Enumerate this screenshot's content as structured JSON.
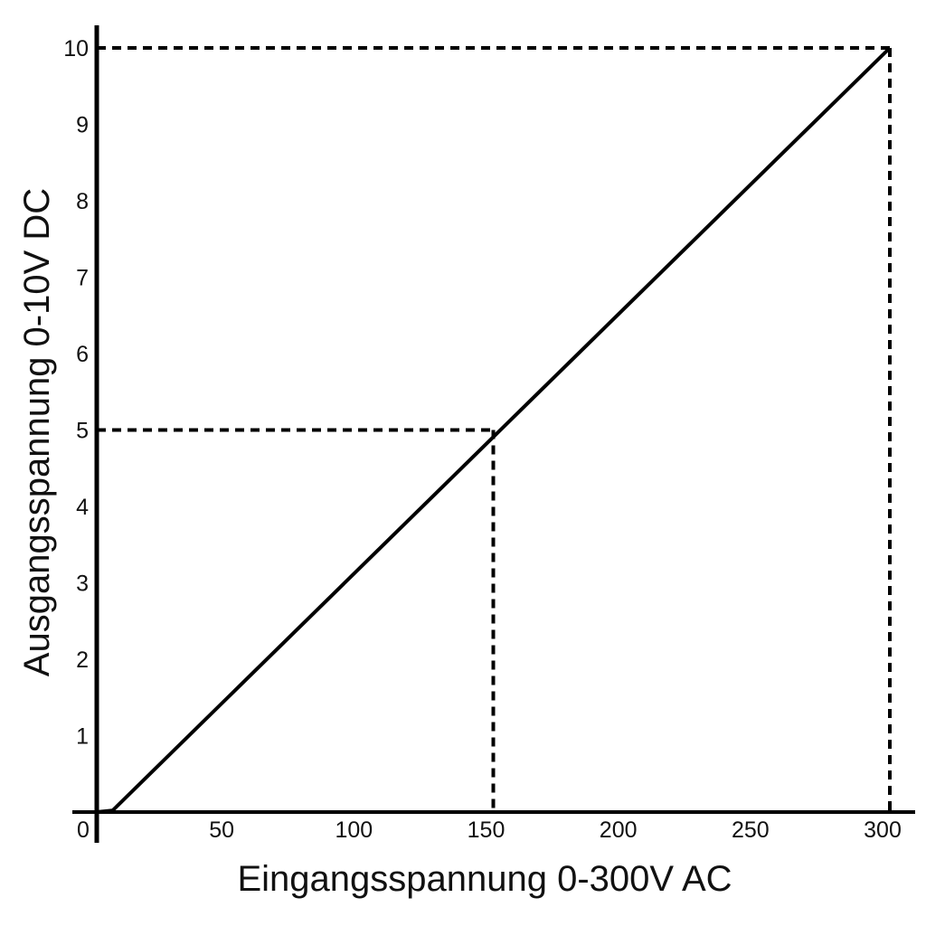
{
  "chart_data": {
    "type": "line",
    "xlabel": "Eingangsspannung 0-300V AC",
    "ylabel": "Ausgangsspannung 0-10V DC",
    "origin_label": "0",
    "xlim": [
      0,
      300
    ],
    "ylim": [
      0,
      10
    ],
    "x_ticks": [
      50,
      100,
      150,
      200,
      250,
      300
    ],
    "x_tick_labels": [
      "50",
      "100",
      "150",
      "200",
      "250",
      "300"
    ],
    "y_ticks": [
      1,
      2,
      3,
      4,
      5,
      6,
      7,
      8,
      9,
      10
    ],
    "y_tick_labels": [
      "1",
      "2",
      "3",
      "4",
      "5",
      "6",
      "7",
      "8",
      "9",
      "10"
    ],
    "grid": false,
    "legend": "none",
    "series": [
      {
        "x": [
          0,
          6,
          300
        ],
        "y": [
          0,
          0.02,
          10
        ],
        "color": "#000000"
      }
    ],
    "reference_lines": [
      {
        "x": 150,
        "y": 5,
        "style": "dashed"
      },
      {
        "x": 300,
        "y": 10,
        "style": "dashed"
      }
    ]
  }
}
